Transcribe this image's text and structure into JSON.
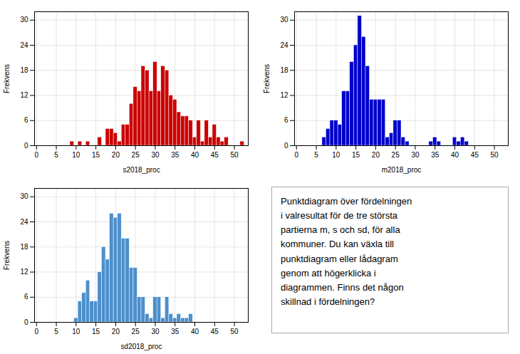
{
  "chart_data": [
    {
      "type": "histogram",
      "xlabel": "s2018_proc",
      "ylabel": "Frekvens",
      "color": "#cc0000",
      "values": [
        0,
        0,
        0,
        0,
        0,
        0,
        0,
        0,
        0,
        1,
        0,
        1,
        0,
        1,
        0,
        0,
        2,
        0,
        4,
        4,
        3,
        1,
        5,
        5,
        10,
        14,
        13,
        19,
        18,
        13,
        20,
        13,
        19,
        18,
        12,
        11,
        8,
        7,
        7,
        6,
        2,
        6,
        1,
        6,
        2,
        5,
        2,
        1,
        2,
        0,
        0,
        0,
        1,
        0
      ],
      "bins": [
        -0.5,
        0.5,
        1.5,
        2.5,
        3.5,
        4.5,
        5.5,
        6.5,
        7.5,
        8.5,
        9.5,
        10.5,
        11.5,
        12.5,
        13.5,
        14.5,
        15.5,
        16.5,
        17.5,
        18.5,
        19.5,
        20.5,
        21.5,
        22.5,
        23.5,
        24.5,
        25.5,
        26.5,
        27.5,
        28.5,
        29.5,
        30.5,
        31.5,
        32.5,
        33.5,
        34.5,
        35.5,
        36.5,
        37.5,
        38.5,
        39.5,
        40.5,
        41.5,
        42.5,
        43.5,
        44.5,
        45.5,
        46.5,
        47.5,
        48.5,
        49.5,
        50.5,
        51.5,
        52.5,
        53.5
      ],
      "xlim": [
        -0.5,
        53.5
      ],
      "xticks": [
        0,
        5,
        10,
        15,
        20,
        25,
        30,
        35,
        40,
        45,
        50
      ],
      "ylim": [
        0,
        32
      ],
      "yticks": [
        0,
        6,
        12,
        18,
        24,
        30
      ],
      "grid": true
    },
    {
      "type": "histogram",
      "xlabel": "m2018_proc",
      "ylabel": "Frekvens",
      "color": "#0000cc",
      "values": [
        0,
        0,
        0,
        0,
        0,
        0,
        0,
        2,
        4,
        6,
        6,
        5,
        13,
        13,
        20,
        24,
        31,
        26,
        19,
        11,
        11,
        11,
        11,
        2,
        3,
        6,
        6,
        2,
        1,
        0,
        0,
        0,
        0,
        0,
        1,
        2,
        1,
        0,
        0,
        0,
        2,
        1,
        2,
        1,
        0,
        0,
        0,
        0,
        0,
        0,
        0,
        0
      ],
      "bins": [
        -0.5,
        0.5,
        1.5,
        2.5,
        3.5,
        4.5,
        5.5,
        6.5,
        7.5,
        8.5,
        9.5,
        10.5,
        11.5,
        12.5,
        13.5,
        14.5,
        15.5,
        16.5,
        17.5,
        18.5,
        19.5,
        20.5,
        21.5,
        22.5,
        23.5,
        24.5,
        25.5,
        26.5,
        27.5,
        28.5,
        29.5,
        30.5,
        31.5,
        32.5,
        33.5,
        34.5,
        35.5,
        36.5,
        37.5,
        38.5,
        39.5,
        40.5,
        41.5,
        42.5,
        43.5,
        44.5,
        45.5,
        46.5,
        47.5,
        48.5,
        49.5,
        50.5,
        51.5
      ],
      "xlim": [
        -0.5,
        53.5
      ],
      "xticks": [
        0,
        5,
        10,
        15,
        20,
        25,
        30,
        35,
        40,
        45,
        50
      ],
      "ylim": [
        0,
        32
      ],
      "yticks": [
        0,
        6,
        12,
        18,
        24,
        30
      ],
      "grid": true
    },
    {
      "type": "histogram",
      "xlabel": "sd2018_proc",
      "ylabel": "Frekvens",
      "color": "#4d8fcc",
      "values": [
        0,
        0,
        0,
        0,
        0,
        0,
        0,
        0,
        0,
        0,
        1,
        5,
        7,
        10,
        5,
        5,
        12,
        18,
        15,
        26,
        25,
        26,
        20,
        20,
        13,
        13,
        6,
        6,
        2,
        1,
        6,
        6,
        1,
        6,
        2,
        1,
        2,
        1,
        1,
        2,
        0,
        0,
        0,
        0,
        0,
        0,
        0,
        0,
        0,
        0,
        0,
        0
      ],
      "bins": [
        -0.5,
        0.5,
        1.5,
        2.5,
        3.5,
        4.5,
        5.5,
        6.5,
        7.5,
        8.5,
        9.5,
        10.5,
        11.5,
        12.5,
        13.5,
        14.5,
        15.5,
        16.5,
        17.5,
        18.5,
        19.5,
        20.5,
        21.5,
        22.5,
        23.5,
        24.5,
        25.5,
        26.5,
        27.5,
        28.5,
        29.5,
        30.5,
        31.5,
        32.5,
        33.5,
        34.5,
        35.5,
        36.5,
        37.5,
        38.5,
        39.5,
        40.5,
        41.5,
        42.5,
        43.5,
        44.5,
        45.5,
        46.5,
        47.5,
        48.5,
        49.5,
        50.5,
        51.5
      ],
      "xlim": [
        -0.5,
        53.5
      ],
      "xticks": [
        0,
        5,
        10,
        15,
        20,
        25,
        30,
        35,
        40,
        45,
        50
      ],
      "ylim": [
        0,
        32
      ],
      "yticks": [
        0,
        6,
        12,
        18,
        24,
        30
      ],
      "grid": true
    },
    {
      "type": "text",
      "annotations": [
        "Punktdiagram över fördelningen\ni valresultat för de tre största\npartierna m, s och sd, för alla\nkommuner.  Du kan växla till\npunktdiagram eller lådagram\ngenom att högerklicka i\ndiagrammen.  Finns det någon\nskillnad i fördelningen?"
      ]
    }
  ]
}
